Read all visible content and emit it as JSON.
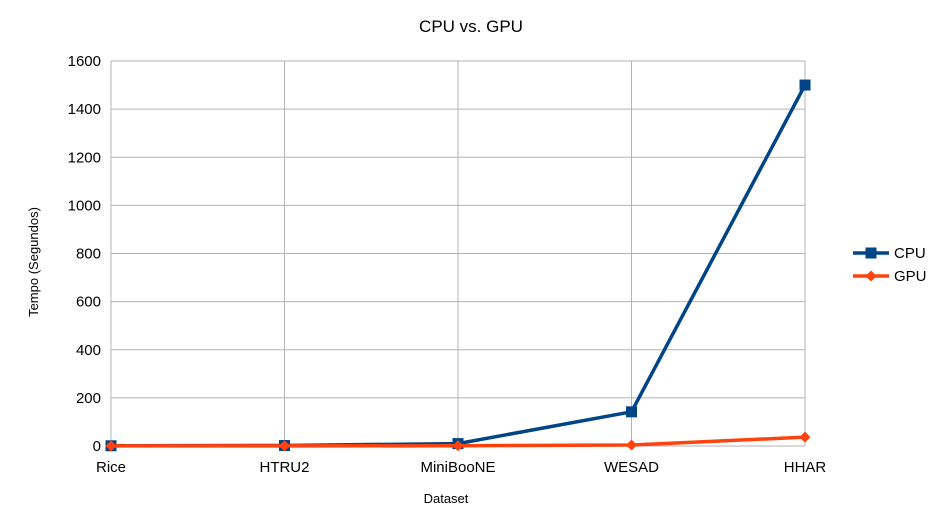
{
  "chart_data": {
    "type": "line",
    "title": "CPU vs. GPU",
    "xlabel": "Dataset",
    "ylabel": "Tempo (Segundos)",
    "categories": [
      "Rice",
      "HTRU2",
      "MiniBooNE",
      "WESAD",
      "HHAR"
    ],
    "ylim": [
      0,
      1600
    ],
    "yticks": [
      0,
      200,
      400,
      600,
      800,
      1000,
      1200,
      1400,
      1600
    ],
    "grid": true,
    "legend_position": "right",
    "series": [
      {
        "name": "CPU",
        "values": [
          1,
          2,
          10,
          142,
          1500
        ],
        "color": "#004586",
        "marker": "square"
      },
      {
        "name": "GPU",
        "values": [
          0.5,
          0.5,
          1,
          4,
          37
        ],
        "color": "#ff420e",
        "marker": "diamond"
      }
    ]
  }
}
